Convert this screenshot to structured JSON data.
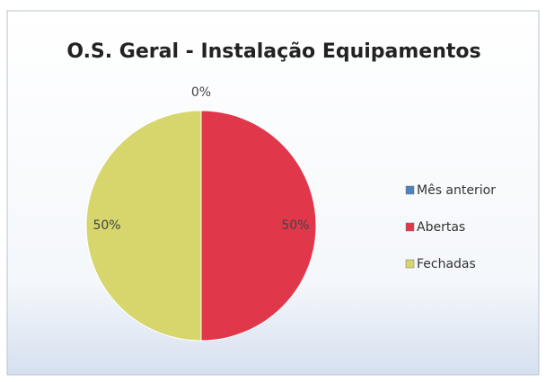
{
  "chart_data": {
    "type": "pie",
    "title": "O.S. Geral - Instalação Equipamentos",
    "categories": [
      "Mês anterior",
      "Abertas",
      "Fechadas"
    ],
    "values": [
      0,
      50,
      50
    ],
    "value_labels": [
      "0%",
      "50%",
      "50%"
    ],
    "colors": [
      "#4f81bd",
      "#e0384a",
      "#d6d66c"
    ],
    "legend": "right"
  }
}
